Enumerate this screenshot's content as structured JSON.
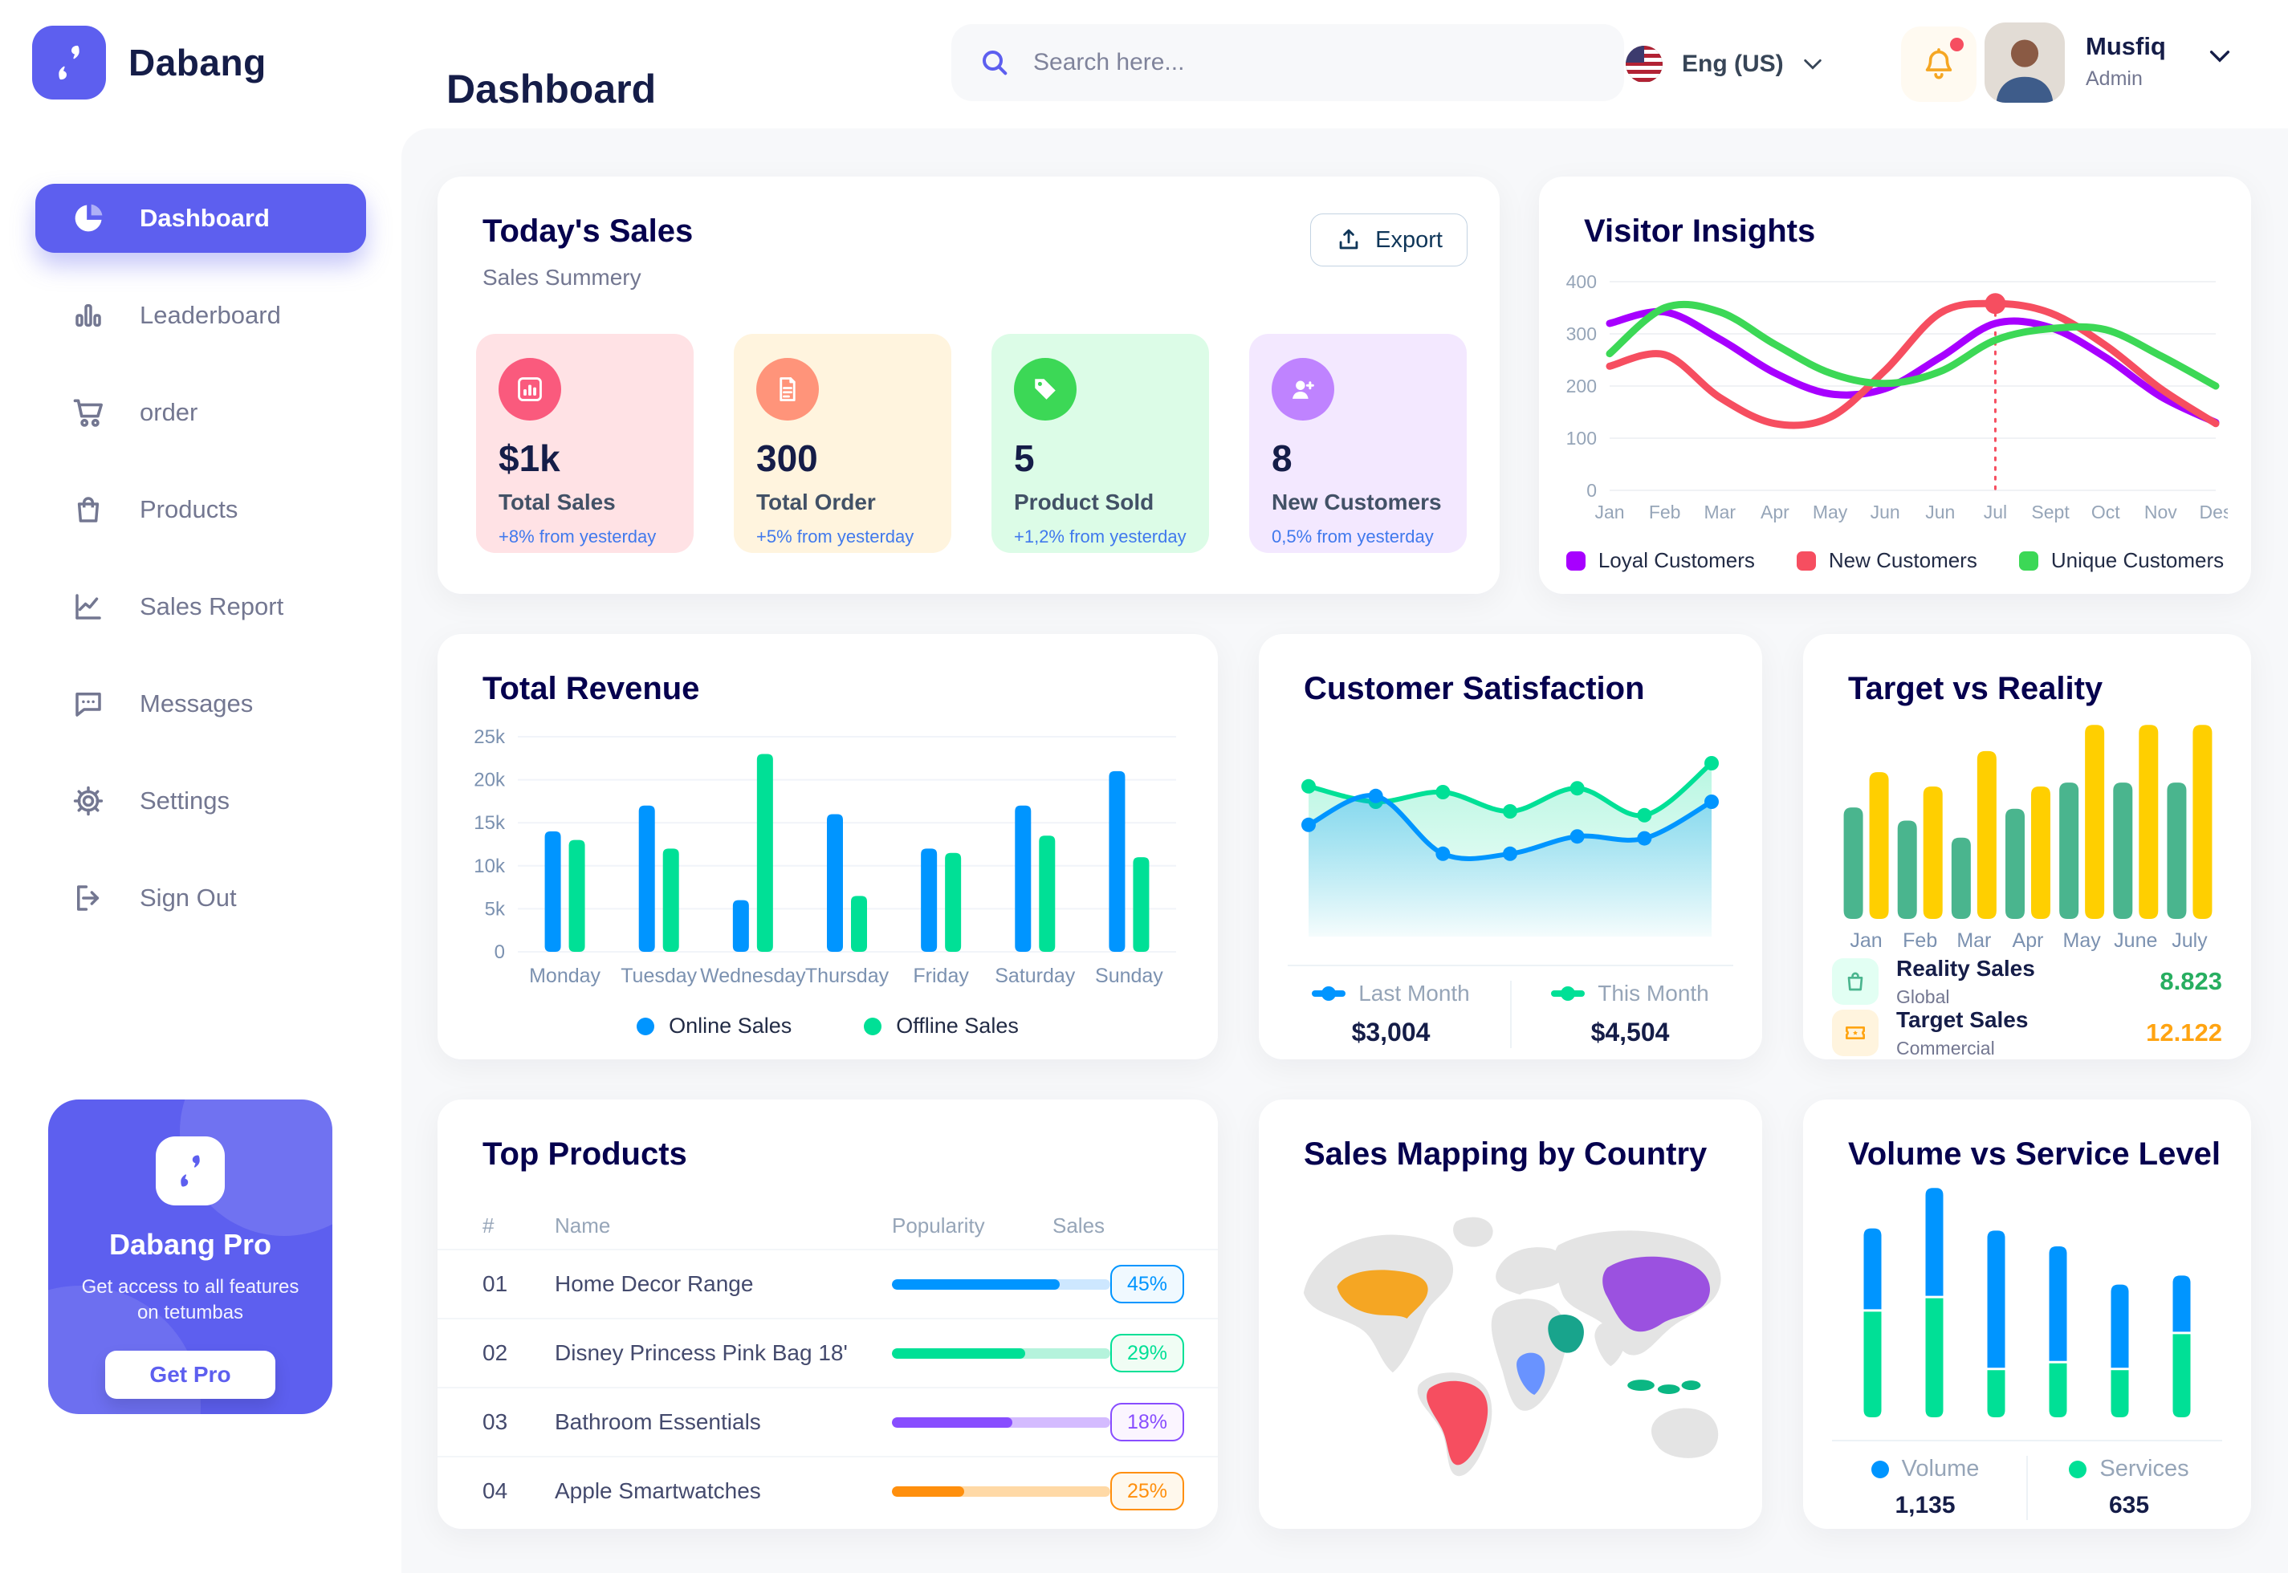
{
  "sidebar": {
    "accent": "#5D5FEF",
    "logo_text": "Dabang",
    "items": [
      {
        "label": "Dashboard"
      },
      {
        "label": "Leaderboard"
      },
      {
        "label": "order"
      },
      {
        "label": "Products"
      },
      {
        "label": "Sales Report"
      },
      {
        "label": "Messages"
      },
      {
        "label": "Settings"
      },
      {
        "label": "Sign Out"
      }
    ],
    "promo": {
      "title": "Dabang Pro",
      "subtitle": "Get access to all features on tetumbas",
      "button": "Get Pro"
    }
  },
  "header": {
    "title": "Dashboard",
    "search_placeholder": "Search here...",
    "language": "Eng (US)",
    "user": {
      "name": "Musfiq",
      "role": "Admin"
    }
  },
  "today_sales": {
    "title": "Today's Sales",
    "subtitle": "Sales Summery",
    "export_label": "Export",
    "trend_color": "#4079ED",
    "cards": [
      {
        "value": "$1k",
        "label": "Total Sales",
        "trend": "+8% from yesterday",
        "bg": "#FFE2E5",
        "icon_bg": "#FA5A7D"
      },
      {
        "value": "300",
        "label": "Total Order",
        "trend": "+5% from yesterday",
        "bg": "#FFF4DE",
        "icon_bg": "#FF947A"
      },
      {
        "value": "5",
        "label": "Product Sold",
        "trend": "+1,2% from yesterday",
        "bg": "#DCFCE7",
        "icon_bg": "#3CD856"
      },
      {
        "value": "8",
        "label": "New Customers",
        "trend": "0,5% from yesterday",
        "bg": "#F3E8FF",
        "icon_bg": "#BF83FF"
      }
    ]
  },
  "visitor_insights": {
    "title": "Visitor Insights",
    "chart_data": {
      "type": "line",
      "x": [
        "Jan",
        "Feb",
        "Mar",
        "Apr",
        "May",
        "Jun",
        "Jun",
        "Jul",
        "Sept",
        "Oct",
        "Nov",
        "Des"
      ],
      "ylim": [
        0,
        400
      ],
      "yticks": [
        0,
        100,
        200,
        300,
        400
      ],
      "series": [
        {
          "name": "Loyal Customers",
          "color": "#A700FF",
          "values": [
            320,
            342,
            290,
            225,
            185,
            195,
            255,
            320,
            312,
            255,
            180,
            130
          ]
        },
        {
          "name": "New Customers",
          "color": "#F64E60",
          "values": [
            238,
            260,
            178,
            128,
            140,
            230,
            340,
            358,
            340,
            278,
            195,
            128
          ]
        },
        {
          "name": "Unique Customers",
          "color": "#3CD856",
          "values": [
            262,
            350,
            342,
            280,
            225,
            205,
            228,
            288,
            310,
            308,
            258,
            200
          ]
        }
      ],
      "highlight": {
        "series_index": 1,
        "point_index": 7,
        "value": 358
      }
    }
  },
  "total_revenue": {
    "title": "Total Revenue",
    "chart_data": {
      "type": "bar",
      "categories": [
        "Monday",
        "Tuesday",
        "Wednesday",
        "Thursday",
        "Friday",
        "Saturday",
        "Sunday"
      ],
      "ylim": [
        0,
        25
      ],
      "ytick_values": [
        0,
        5,
        10,
        15,
        20,
        25
      ],
      "ytick_labels": [
        "0",
        "5k",
        "10k",
        "15k",
        "20k",
        "25k"
      ],
      "series": [
        {
          "name": "Online Sales",
          "color": "#0095FF",
          "values": [
            14,
            17,
            6,
            16,
            12,
            17,
            21
          ]
        },
        {
          "name": "Offline Sales",
          "color": "#00E096",
          "values": [
            13,
            12,
            23,
            6.5,
            11.5,
            13.5,
            11
          ]
        }
      ]
    }
  },
  "customer_satisfaction": {
    "title": "Customer Satisfaction",
    "chart_data": {
      "type": "area",
      "ylim": [
        0,
        100
      ],
      "series": [
        {
          "name": "Last Month",
          "color": "#0095FF",
          "total": "$3,004",
          "values": [
            58,
            73,
            43,
            43,
            52,
            51,
            70
          ]
        },
        {
          "name": "This Month",
          "color": "#00E096",
          "total": "$4,504",
          "values": [
            78,
            70,
            75,
            65,
            77,
            63,
            90
          ]
        }
      ]
    }
  },
  "target_vs_reality": {
    "title": "Target vs Reality",
    "chart_data": {
      "type": "bar",
      "categories": [
        "Jan",
        "Feb",
        "Mar",
        "Apr",
        "May",
        "June",
        "July"
      ],
      "ylim": [
        0,
        15
      ],
      "series": [
        {
          "name": "Reality Sales",
          "color": "#4AB58E",
          "values": [
            8.5,
            7.5,
            6.2,
            8.4,
            10.4,
            10.4,
            10.4
          ]
        },
        {
          "name": "Target Sales",
          "color": "#FFCF00",
          "values": [
            11.2,
            10.1,
            12.8,
            10.1,
            14.8,
            14.8,
            14.8
          ]
        }
      ]
    },
    "legend": [
      {
        "title": "Reality Sales",
        "subtitle": "Global",
        "value": "8.823",
        "value_color": "#27AE60",
        "icon_bg": "#E2FFF3",
        "icon_color": "#4AB58E"
      },
      {
        "title": "Target Sales",
        "subtitle": "Commercial",
        "value": "12.122",
        "value_color": "#FFA412",
        "icon_bg": "#FFF4DE",
        "icon_color": "#FFA412"
      }
    ]
  },
  "top_products": {
    "title": "Top Products",
    "columns": [
      "#",
      "Name",
      "Popularity",
      "Sales"
    ],
    "rows": [
      {
        "num": "01",
        "name": "Home Decor Range",
        "popularity_width": "77%",
        "sales": "45%",
        "color": "#0095FF",
        "track": "#CDE7FF",
        "badge_bg": "#F0F9FF"
      },
      {
        "num": "02",
        "name": "Disney Princess Pink Bag 18'",
        "popularity_width": "61%",
        "sales": "29%",
        "color": "#00E096",
        "track": "#B5F3DC",
        "badge_bg": "#F0FDF4"
      },
      {
        "num": "03",
        "name": "Bathroom Essentials",
        "popularity_width": "55%",
        "sales": "18%",
        "color": "#884DFF",
        "track": "#D4BBFF",
        "badge_bg": "#FBF5FF"
      },
      {
        "num": "04",
        "name": "Apple Smartwatches",
        "popularity_width": "33%",
        "sales": "25%",
        "color": "#FF8F0D",
        "track": "#FFD9A6",
        "badge_bg": "#FFF8EC"
      }
    ]
  },
  "sales_mapping": {
    "title": "Sales Mapping by Country",
    "base_color": "#E4E4E4",
    "countries": [
      {
        "key": "usa",
        "name": "United States",
        "color": "#F5A623"
      },
      {
        "key": "brazil",
        "name": "Brazil",
        "color": "#F64E60"
      },
      {
        "key": "drc",
        "name": "DR Congo",
        "color": "#6993FF"
      },
      {
        "key": "saudi",
        "name": "Saudi Arabia",
        "color": "#18A48C"
      },
      {
        "key": "china",
        "name": "China",
        "color": "#9B51E0"
      },
      {
        "key": "indonesia",
        "name": "Indonesia",
        "color": "#0BB783"
      }
    ]
  },
  "volume_service": {
    "title": "Volume vs Service Level",
    "chart_data": {
      "type": "bar",
      "stacked": true,
      "series": [
        {
          "name": "Volume",
          "color": "#0095FF",
          "total": "1,135",
          "values": [
            36,
            48,
            61,
            51,
            37,
            25
          ]
        },
        {
          "name": "Services",
          "color": "#00E096",
          "total": "635",
          "values": [
            47,
            53,
            21,
            24,
            21,
            37
          ]
        }
      ]
    }
  }
}
